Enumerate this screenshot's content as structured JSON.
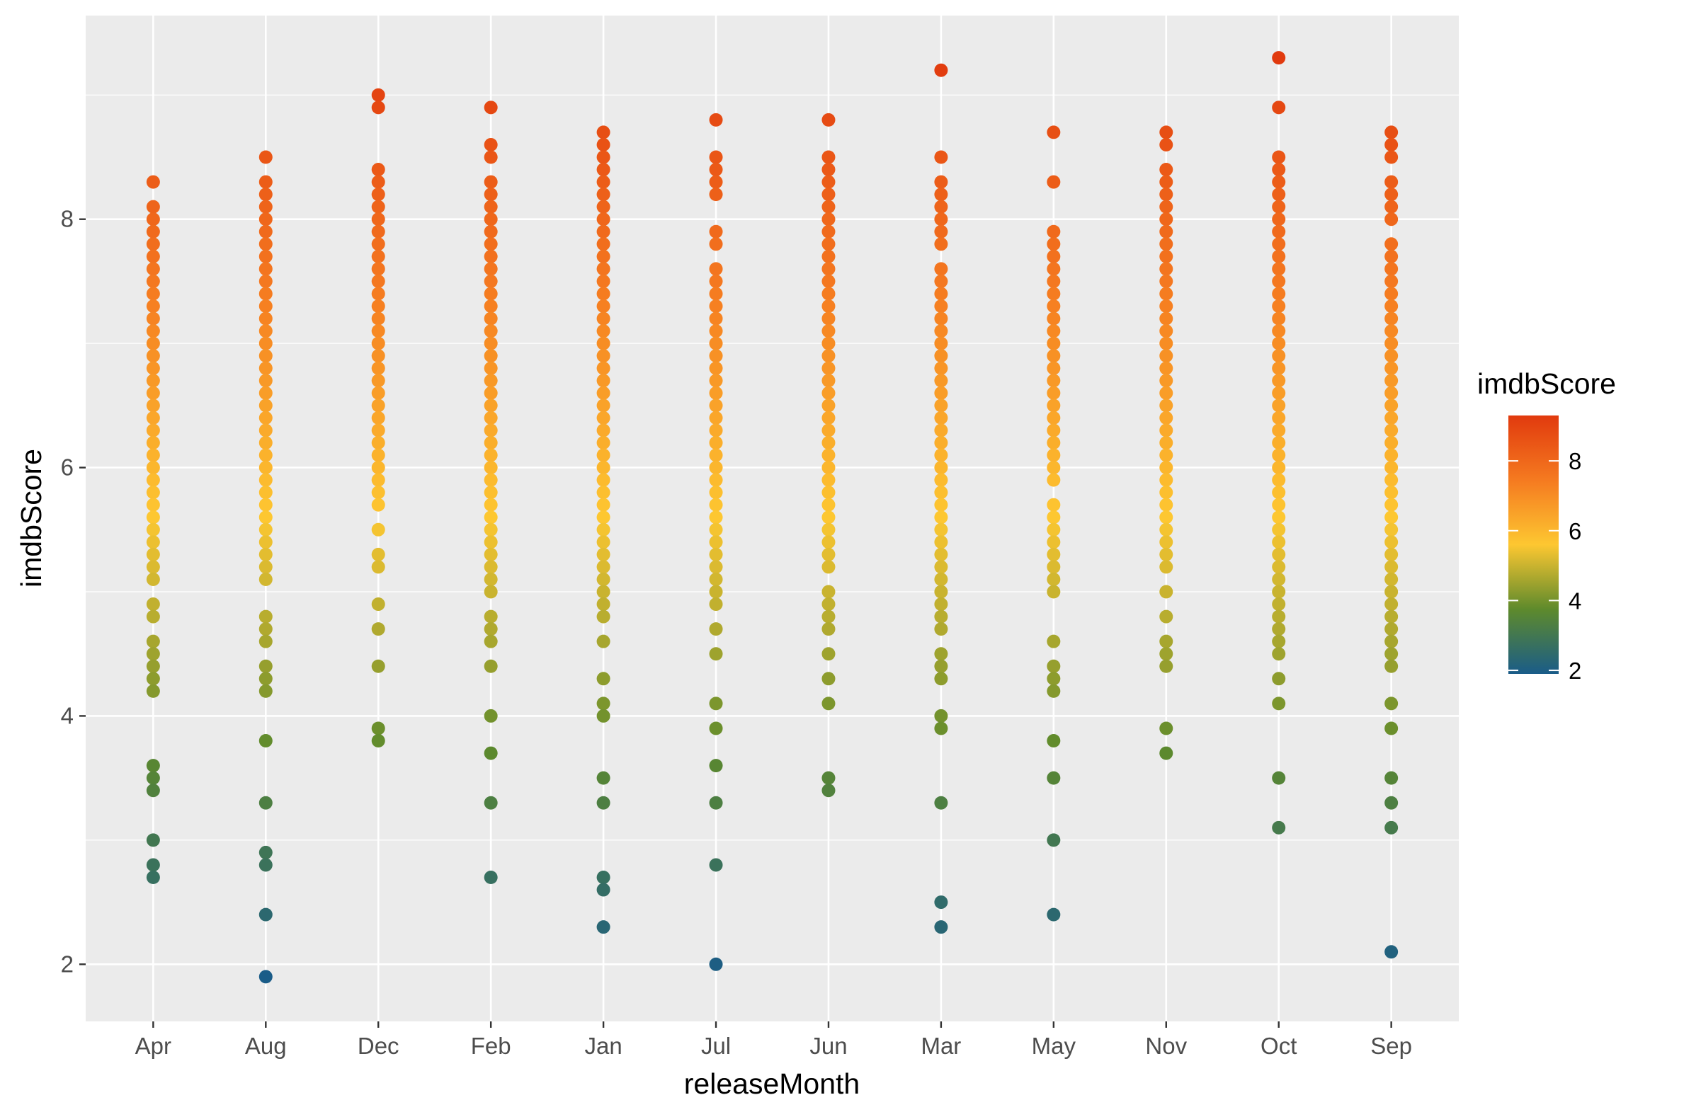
{
  "chart_data": {
    "type": "scatter",
    "xlabel": "releaseMonth",
    "ylabel": "imdbScore",
    "categories": [
      "Apr",
      "Aug",
      "Dec",
      "Feb",
      "Jan",
      "Jul",
      "Jun",
      "Mar",
      "May",
      "Nov",
      "Oct",
      "Sep"
    ],
    "ylim": [
      1.54,
      9.64
    ],
    "yticks": [
      2,
      4,
      6,
      8
    ],
    "grid": true,
    "colorbar": {
      "title": "imdbScore",
      "range": [
        1.9,
        9.3
      ],
      "ticks": [
        2,
        4,
        6,
        8
      ],
      "colors": [
        "#1a5c88",
        "#5e8a2c",
        "#fdc731",
        "#f57a20",
        "#e13a0e"
      ]
    },
    "series": [
      {
        "name": "Apr",
        "values": [
          8.3,
          8.1,
          8.0,
          7.9,
          7.8,
          7.7,
          7.6,
          7.5,
          7.4,
          7.3,
          7.2,
          7.1,
          7.0,
          6.9,
          6.8,
          6.7,
          6.6,
          6.5,
          6.4,
          6.3,
          6.2,
          6.1,
          6.0,
          5.9,
          5.8,
          5.7,
          5.6,
          5.5,
          5.4,
          5.3,
          5.2,
          5.1,
          4.9,
          4.8,
          4.6,
          4.5,
          4.4,
          4.3,
          4.2,
          3.6,
          3.5,
          3.4,
          3.0,
          2.8,
          2.7
        ]
      },
      {
        "name": "Aug",
        "values": [
          8.5,
          8.3,
          8.2,
          8.1,
          8.0,
          7.9,
          7.8,
          7.7,
          7.6,
          7.5,
          7.4,
          7.3,
          7.2,
          7.1,
          7.0,
          6.9,
          6.8,
          6.7,
          6.6,
          6.5,
          6.4,
          6.3,
          6.2,
          6.1,
          6.0,
          5.9,
          5.8,
          5.7,
          5.6,
          5.5,
          5.4,
          5.3,
          5.2,
          5.1,
          4.8,
          4.7,
          4.6,
          4.4,
          4.3,
          4.2,
          3.8,
          3.3,
          2.9,
          2.8,
          2.4,
          1.9
        ]
      },
      {
        "name": "Dec",
        "values": [
          9.0,
          8.9,
          8.4,
          8.3,
          8.2,
          8.1,
          8.0,
          7.9,
          7.8,
          7.7,
          7.6,
          7.5,
          7.4,
          7.3,
          7.2,
          7.1,
          7.0,
          6.9,
          6.8,
          6.7,
          6.6,
          6.5,
          6.4,
          6.3,
          6.2,
          6.1,
          6.0,
          5.9,
          5.8,
          5.7,
          5.5,
          5.3,
          5.2,
          4.9,
          4.7,
          4.4,
          3.9,
          3.8
        ]
      },
      {
        "name": "Feb",
        "values": [
          8.9,
          8.6,
          8.5,
          8.3,
          8.2,
          8.1,
          8.0,
          7.9,
          7.8,
          7.7,
          7.6,
          7.5,
          7.4,
          7.3,
          7.2,
          7.1,
          7.0,
          6.9,
          6.8,
          6.7,
          6.6,
          6.5,
          6.4,
          6.3,
          6.2,
          6.1,
          6.0,
          5.9,
          5.8,
          5.7,
          5.6,
          5.5,
          5.4,
          5.3,
          5.2,
          5.1,
          5.0,
          4.8,
          4.7,
          4.6,
          4.4,
          4.0,
          3.7,
          3.3,
          2.7
        ]
      },
      {
        "name": "Jan",
        "values": [
          8.7,
          8.6,
          8.5,
          8.4,
          8.3,
          8.2,
          8.1,
          8.0,
          7.9,
          7.8,
          7.7,
          7.6,
          7.5,
          7.4,
          7.3,
          7.2,
          7.1,
          7.0,
          6.9,
          6.8,
          6.7,
          6.6,
          6.5,
          6.4,
          6.3,
          6.2,
          6.1,
          6.0,
          5.9,
          5.8,
          5.7,
          5.6,
          5.5,
          5.4,
          5.3,
          5.2,
          5.1,
          5.0,
          4.9,
          4.8,
          4.6,
          4.3,
          4.1,
          4.0,
          3.5,
          3.3,
          2.7,
          2.6,
          2.3
        ]
      },
      {
        "name": "Jul",
        "values": [
          8.8,
          8.5,
          8.4,
          8.3,
          8.2,
          7.9,
          7.8,
          7.6,
          7.5,
          7.4,
          7.3,
          7.2,
          7.1,
          7.0,
          6.9,
          6.8,
          6.7,
          6.6,
          6.5,
          6.4,
          6.3,
          6.2,
          6.1,
          6.0,
          5.9,
          5.8,
          5.7,
          5.6,
          5.5,
          5.4,
          5.3,
          5.2,
          5.1,
          5.0,
          4.9,
          4.7,
          4.5,
          4.1,
          3.9,
          3.6,
          3.3,
          2.8,
          2.0
        ]
      },
      {
        "name": "Jun",
        "values": [
          8.8,
          8.5,
          8.4,
          8.3,
          8.2,
          8.1,
          8.0,
          7.9,
          7.8,
          7.7,
          7.6,
          7.5,
          7.4,
          7.3,
          7.2,
          7.1,
          7.0,
          6.9,
          6.8,
          6.7,
          6.6,
          6.5,
          6.4,
          6.3,
          6.2,
          6.1,
          6.0,
          5.9,
          5.8,
          5.7,
          5.6,
          5.5,
          5.4,
          5.3,
          5.2,
          5.0,
          4.9,
          4.8,
          4.7,
          4.5,
          4.3,
          4.1,
          3.5,
          3.4
        ]
      },
      {
        "name": "Mar",
        "values": [
          9.2,
          8.5,
          8.3,
          8.2,
          8.1,
          8.0,
          7.9,
          7.8,
          7.6,
          7.5,
          7.4,
          7.3,
          7.2,
          7.1,
          7.0,
          6.9,
          6.8,
          6.7,
          6.6,
          6.5,
          6.4,
          6.3,
          6.2,
          6.1,
          6.0,
          5.9,
          5.8,
          5.7,
          5.6,
          5.5,
          5.4,
          5.3,
          5.2,
          5.1,
          5.0,
          4.9,
          4.8,
          4.7,
          4.5,
          4.4,
          4.3,
          4.0,
          3.9,
          3.3,
          2.5,
          2.3
        ]
      },
      {
        "name": "May",
        "values": [
          8.7,
          8.3,
          7.9,
          7.8,
          7.7,
          7.6,
          7.5,
          7.4,
          7.3,
          7.2,
          7.1,
          7.0,
          6.9,
          6.8,
          6.7,
          6.6,
          6.5,
          6.4,
          6.3,
          6.2,
          6.1,
          6.0,
          5.9,
          5.7,
          5.6,
          5.5,
          5.4,
          5.3,
          5.2,
          5.1,
          5.0,
          4.6,
          4.4,
          4.3,
          4.2,
          3.8,
          3.5,
          3.0,
          2.4
        ]
      },
      {
        "name": "Nov",
        "values": [
          8.7,
          8.6,
          8.4,
          8.3,
          8.2,
          8.1,
          8.0,
          7.9,
          7.8,
          7.7,
          7.6,
          7.5,
          7.4,
          7.3,
          7.2,
          7.1,
          7.0,
          6.9,
          6.8,
          6.7,
          6.6,
          6.5,
          6.4,
          6.3,
          6.2,
          6.1,
          6.0,
          5.9,
          5.8,
          5.7,
          5.6,
          5.5,
          5.4,
          5.3,
          5.2,
          5.0,
          4.8,
          4.6,
          4.5,
          4.4,
          3.9,
          3.7
        ]
      },
      {
        "name": "Oct",
        "values": [
          9.3,
          8.9,
          8.5,
          8.4,
          8.3,
          8.2,
          8.1,
          8.0,
          7.9,
          7.8,
          7.7,
          7.6,
          7.5,
          7.4,
          7.3,
          7.2,
          7.1,
          7.0,
          6.9,
          6.8,
          6.7,
          6.6,
          6.5,
          6.4,
          6.3,
          6.2,
          6.1,
          6.0,
          5.9,
          5.8,
          5.7,
          5.6,
          5.5,
          5.4,
          5.3,
          5.2,
          5.1,
          5.0,
          4.9,
          4.8,
          4.7,
          4.6,
          4.5,
          4.3,
          4.1,
          3.5,
          3.1
        ]
      },
      {
        "name": "Sep",
        "values": [
          8.7,
          8.6,
          8.5,
          8.3,
          8.2,
          8.1,
          8.0,
          7.8,
          7.7,
          7.6,
          7.5,
          7.4,
          7.3,
          7.2,
          7.1,
          7.0,
          6.9,
          6.8,
          6.7,
          6.6,
          6.5,
          6.4,
          6.3,
          6.2,
          6.1,
          6.0,
          5.9,
          5.8,
          5.7,
          5.6,
          5.5,
          5.4,
          5.3,
          5.2,
          5.1,
          5.0,
          4.9,
          4.8,
          4.7,
          4.6,
          4.5,
          4.4,
          4.1,
          3.9,
          3.5,
          3.3,
          3.1,
          2.1
        ]
      }
    ]
  }
}
